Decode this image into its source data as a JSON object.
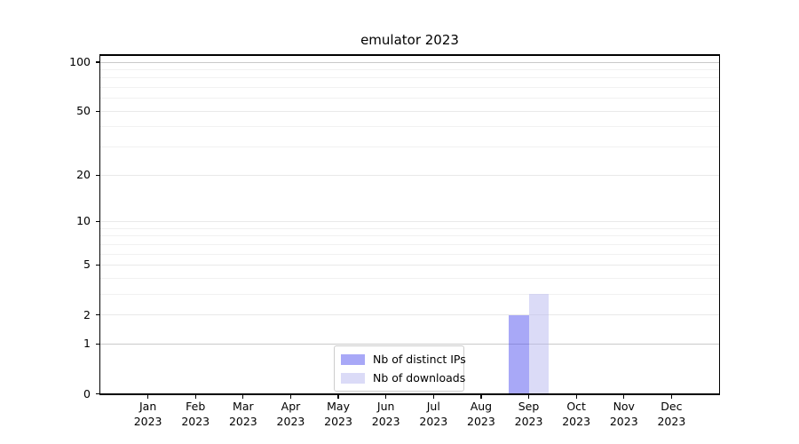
{
  "chart_data": {
    "type": "bar",
    "title": "emulator 2023",
    "categories": [
      "Jan 2023",
      "Feb 2023",
      "Mar 2023",
      "Apr 2023",
      "May 2023",
      "Jun 2023",
      "Jul 2023",
      "Aug 2023",
      "Sep 2023",
      "Oct 2023",
      "Nov 2023",
      "Dec 2023"
    ],
    "months": [
      "Jan",
      "Feb",
      "Mar",
      "Apr",
      "May",
      "Jun",
      "Jul",
      "Aug",
      "Sep",
      "Oct",
      "Nov",
      "Dec"
    ],
    "year": "2023",
    "series": [
      {
        "name": "Nb of distinct IPs",
        "color": "rgba(81,81,239,0.5)",
        "color_hex": "#a8a8f4",
        "values": [
          0,
          0,
          0,
          0,
          0,
          0,
          0,
          0,
          2,
          0,
          0,
          0
        ]
      },
      {
        "name": "Nb of downloads",
        "color": "rgba(183,183,239,0.5)",
        "color_hex": "#dbdbf7",
        "values": [
          0,
          0,
          0,
          0,
          0,
          0,
          0,
          0,
          3,
          0,
          0,
          0
        ]
      }
    ],
    "xlabel": "",
    "ylabel": "",
    "y_ticks": [
      0,
      1,
      2,
      5,
      10,
      20,
      50,
      100
    ],
    "y_scale": "log10(1+v)",
    "ylim": [
      0,
      110.5
    ],
    "grid": {
      "orientation": "horizontal",
      "major_values": [
        2,
        5,
        10,
        20,
        50
      ],
      "minor_values": [
        3,
        4,
        6,
        7,
        8,
        9,
        30,
        40,
        60,
        70,
        80,
        90
      ],
      "emphasized_values": [
        1,
        100
      ],
      "major_color": "#e9e9e9",
      "minor_color": "#f1f1f1",
      "emphasized_color": "#c9c9c9"
    },
    "legend": {
      "position": "lower center",
      "entries": [
        "Nb of distinct IPs",
        "Nb of downloads"
      ]
    },
    "axis_color": "#000000",
    "background_color": "#ffffff"
  }
}
